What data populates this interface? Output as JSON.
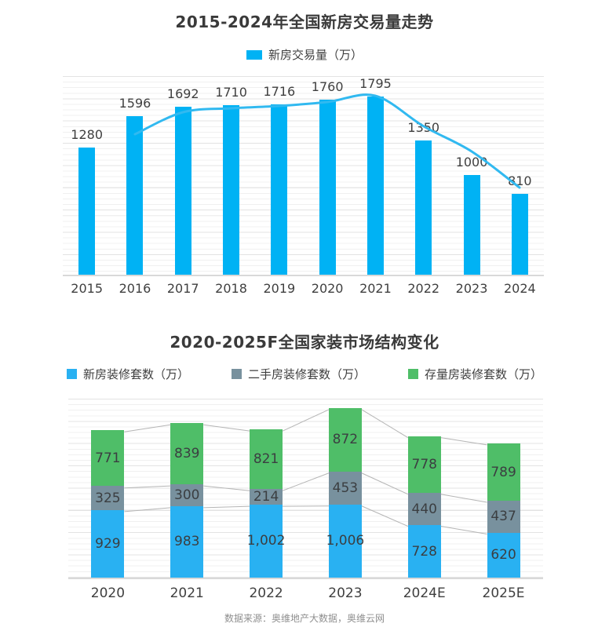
{
  "chart_data": [
    {
      "type": "bar",
      "title": "2015-2024年全国新房交易量走势",
      "categories": [
        "2015",
        "2016",
        "2017",
        "2018",
        "2019",
        "2020",
        "2021",
        "2022",
        "2023",
        "2024"
      ],
      "series": [
        {
          "name": "新房交易量（万）",
          "color": "#00b2f4",
          "values": [
            1280,
            1596,
            1692,
            1710,
            1716,
            1760,
            1795,
            1350,
            1000,
            810
          ]
        }
      ],
      "line_overlay": {
        "present": true,
        "color": "#31b9f0",
        "describes": "smoothed trend of same series"
      },
      "xlabel": "",
      "ylabel": "",
      "ylim": [
        0,
        2015
      ],
      "grid": "horizontal",
      "legend_position": "top",
      "value_labels": "above-bars"
    },
    {
      "type": "stacked-bar",
      "title": "2020-2025F全国家装市场结构变化",
      "categories": [
        "2020",
        "2021",
        "2022",
        "2023",
        "2024E",
        "2025E"
      ],
      "series": [
        {
          "name": "新房装修套数（万）",
          "color": "#29b1f2",
          "values": [
            929,
            983,
            1002,
            1006,
            728,
            620
          ]
        },
        {
          "name": "二手房装修套数（万）",
          "color": "#78919e",
          "values": [
            325,
            300,
            214,
            453,
            440,
            437
          ]
        },
        {
          "name": "存量房装修套数（万）",
          "color": "#4fbe68",
          "values": [
            771,
            839,
            821,
            872,
            778,
            789
          ]
        }
      ],
      "connector_lines": {
        "present": true,
        "color": "#b5b5b5"
      },
      "xlabel": "",
      "ylabel": "",
      "ylim": [
        0,
        2480
      ],
      "grid": "horizontal",
      "legend_position": "top",
      "value_labels": "inside-segments",
      "label_format": "thousands-comma"
    }
  ],
  "footer": {
    "text": "数据来源：奥维地产大数据，奥维云网"
  },
  "colors": {
    "axis_line": "#d9d9d9",
    "grid_major": "#e3e3e3",
    "grid_minor": "#f0f0f0",
    "title_text": "#3a3a3a",
    "label_text": "#3f3f3f",
    "footer_text": "#8f8f8f"
  }
}
